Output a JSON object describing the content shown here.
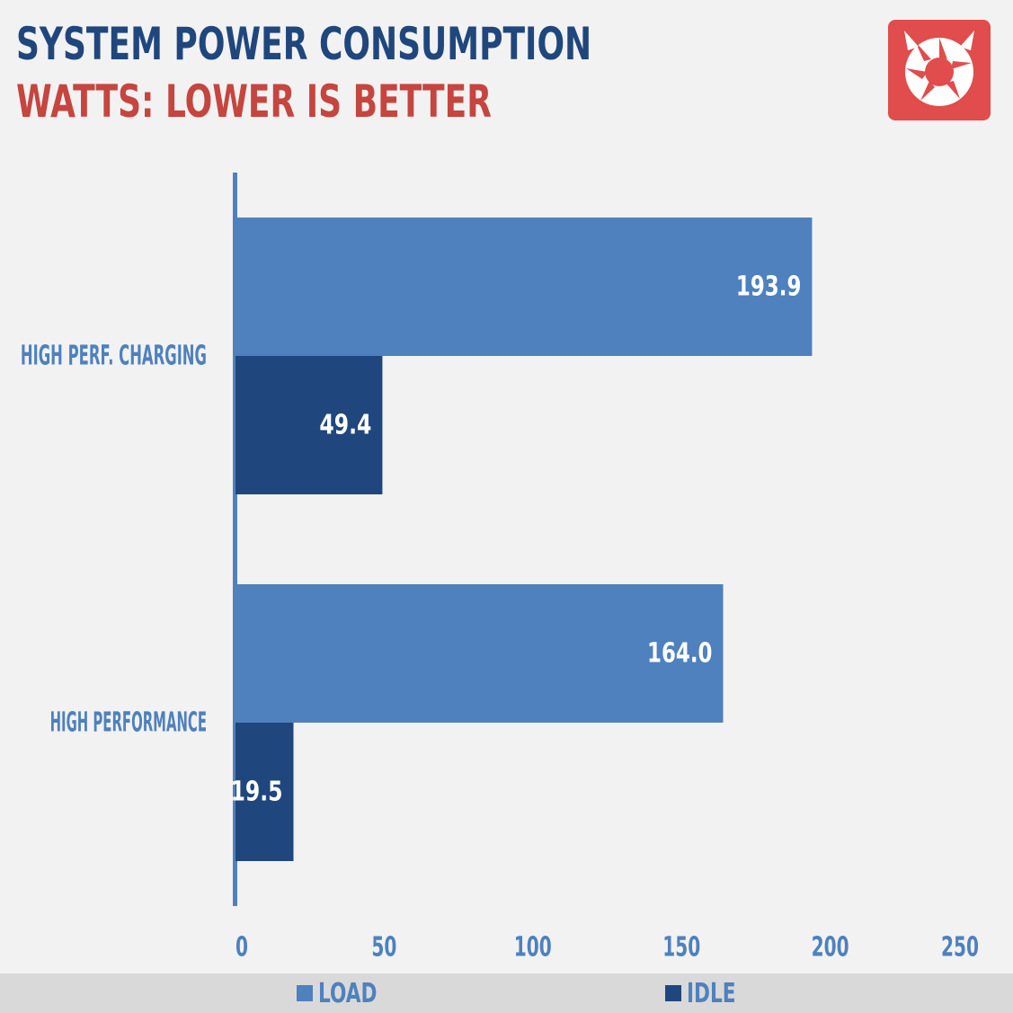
{
  "header": {
    "title": "SYSTEM POWER CONSUMPTION",
    "subtitle": "WATTS: LOWER IS BETTER"
  },
  "logo": {
    "icon": "aperture-fox-logo-icon",
    "color": "#e04d4c"
  },
  "legend": {
    "items": [
      {
        "label": "LOAD",
        "color": "#4e81bd"
      },
      {
        "label": "IDLE",
        "color": "#1f477d"
      }
    ],
    "placement": "bottom"
  },
  "chart_data": {
    "type": "bar",
    "orientation": "horizontal",
    "title": "SYSTEM POWER CONSUMPTION",
    "subtitle": "WATTS: LOWER IS BETTER",
    "categories": [
      "HIGH PERF. CHARGING",
      "HIGH PERFORMANCE"
    ],
    "series": [
      {
        "name": "LOAD",
        "values": [
          193.9,
          164.0
        ],
        "labels": [
          "193.9",
          "164.0"
        ],
        "color": "#4e81bd"
      },
      {
        "name": "IDLE",
        "values": [
          49.4,
          19.5
        ],
        "labels": [
          "49.4",
          "19.5"
        ],
        "color": "#1f477d"
      }
    ],
    "xlim": [
      0,
      250
    ],
    "xticks": [
      0,
      50,
      100,
      150,
      200,
      250
    ],
    "xtick_labels": [
      "0",
      "50",
      "100",
      "150",
      "200",
      "250"
    ],
    "grid": false,
    "legend_position": "bottom",
    "colors": {
      "category_label": "#4e81bd",
      "tick_label": "#4e81bd",
      "axis_line": "#4e81bd",
      "value_label": "#ffffff"
    }
  }
}
